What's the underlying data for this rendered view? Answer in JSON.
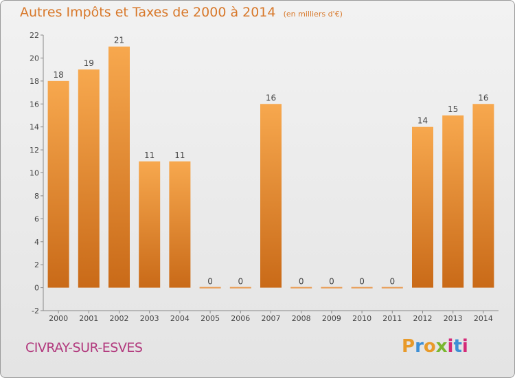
{
  "chart_data": {
    "type": "bar",
    "title": "Autres Impôts et Taxes de 2000 à 2014",
    "subtitle": "(en milliers d'€)",
    "categories": [
      "2000",
      "2001",
      "2002",
      "2003",
      "2004",
      "2005",
      "2006",
      "2007",
      "2008",
      "2009",
      "2010",
      "2011",
      "2012",
      "2013",
      "2014"
    ],
    "values": [
      18,
      19,
      21,
      11,
      11,
      0,
      0,
      16,
      0,
      0,
      0,
      0,
      14,
      15,
      16
    ],
    "ylim": [
      -2,
      22
    ],
    "yticks": [
      -2,
      0,
      2,
      4,
      6,
      8,
      10,
      12,
      14,
      16,
      18,
      20,
      22
    ],
    "grid": false,
    "colors": {
      "bar_top": "#f7a84e",
      "bar_bottom": "#c96a18",
      "zero_bar": "#e89a50",
      "title": "#d8782a"
    }
  },
  "footer": {
    "place": "CIVRAY-SUR-ESVES",
    "brand": "Proxiti",
    "brand_colors": [
      "#e89a2a",
      "#3d8fd6",
      "#e89a2a",
      "#79b72f",
      "#d42a78",
      "#3d8fd6",
      "#d42a78"
    ]
  }
}
